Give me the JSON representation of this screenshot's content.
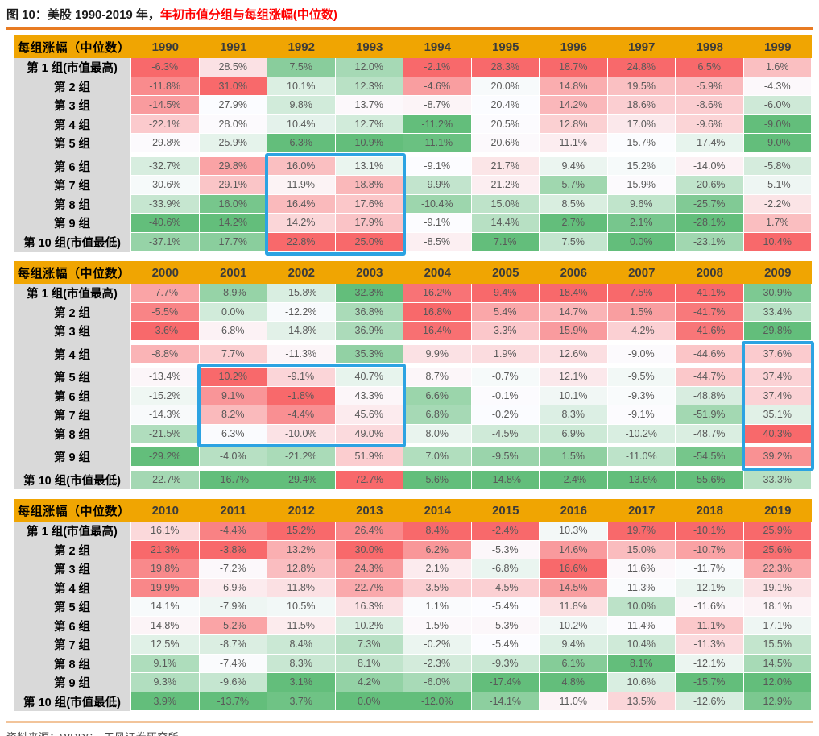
{
  "title": {
    "black": "图 10：美股 1990-2019 年，",
    "red": "年初市值分组与每组涨幅(中位数)"
  },
  "footer": {
    "text": "资料来源：WRDS，天风证券研究所"
  },
  "colors": {
    "header_gold": "#F0A502",
    "label_gray": "#D9D9D9",
    "scale_max_red": "#F8696B",
    "scale_mid_white": "#FCFCFF",
    "scale_min_green": "#63BE7B",
    "highlight_blue": "#2CA3E2",
    "top_rule_orange": "#E87B22",
    "bottom_rule_tan": "#F2C49A",
    "title_red": "#FF0000",
    "cell_text": "#595959"
  },
  "chart_data": {
    "type": "heatmap",
    "title": "图 10：美股 1990-2019 年，年初市值分组与每组涨幅(中位数)",
    "corner_label": "每组涨幅（中位数）",
    "colorscale_note": "per-column 3-color scale: column max = red #F8696B, column 50th percentile = white #FCFCFF, column min = green #63BE7B",
    "tables": [
      {
        "years": [
          "1990",
          "1991",
          "1992",
          "1993",
          "1994",
          "1995",
          "1996",
          "1997",
          "1998",
          "1999"
        ],
        "gaps_after": [
          4
        ],
        "rows": [
          {
            "label": "第 1 组(市值最高)",
            "values": [
              -6.3,
              28.5,
              7.5,
              12.0,
              -2.1,
              28.3,
              18.7,
              24.8,
              6.5,
              1.6
            ]
          },
          {
            "label": "第 2 组",
            "values": [
              -11.8,
              31.0,
              10.1,
              12.3,
              -4.6,
              20.0,
              14.8,
              19.5,
              -5.9,
              -4.3
            ]
          },
          {
            "label": "第 3 组",
            "values": [
              -14.5,
              27.9,
              9.8,
              13.7,
              -8.7,
              20.4,
              14.2,
              18.6,
              -8.6,
              -6.0
            ]
          },
          {
            "label": "第 4 组",
            "values": [
              -22.1,
              28.0,
              10.4,
              12.7,
              -11.2,
              20.5,
              12.8,
              17.0,
              -9.6,
              -9.0
            ]
          },
          {
            "label": "第 5 组",
            "values": [
              -29.8,
              25.9,
              6.3,
              10.9,
              -11.1,
              20.6,
              11.1,
              15.7,
              -17.4,
              -9.0
            ]
          },
          {
            "label": "第 6 组",
            "values": [
              -32.7,
              29.8,
              16.0,
              13.1,
              -9.1,
              21.7,
              9.4,
              15.2,
              -14.0,
              -5.8
            ]
          },
          {
            "label": "第 7 组",
            "values": [
              -30.6,
              29.1,
              11.9,
              18.8,
              -9.9,
              21.2,
              5.7,
              15.9,
              -20.6,
              -5.1
            ]
          },
          {
            "label": "第 8 组",
            "values": [
              -33.9,
              16.0,
              16.4,
              17.6,
              -10.4,
              15.0,
              8.5,
              9.6,
              -25.7,
              -2.2
            ]
          },
          {
            "label": "第 9 组",
            "values": [
              -40.6,
              14.2,
              14.2,
              17.9,
              -9.1,
              14.4,
              2.7,
              2.1,
              -28.1,
              1.7
            ]
          },
          {
            "label": "第 10 组(市值最低)",
            "values": [
              -37.1,
              17.7,
              22.8,
              25.0,
              -8.5,
              7.1,
              7.5,
              0.0,
              -23.1,
              10.4
            ]
          }
        ]
      },
      {
        "years": [
          "2000",
          "2001",
          "2002",
          "2003",
          "2004",
          "2005",
          "2006",
          "2007",
          "2008",
          "2009"
        ],
        "gaps_after": [
          2,
          3,
          7,
          8
        ],
        "rows": [
          {
            "label": "第 1 组(市值最高)",
            "values": [
              -7.7,
              -8.9,
              -15.8,
              32.3,
              16.2,
              9.4,
              18.4,
              7.5,
              -41.1,
              30.9
            ]
          },
          {
            "label": "第 2 组",
            "values": [
              -5.5,
              0.0,
              -12.2,
              36.8,
              16.8,
              5.4,
              14.7,
              1.5,
              -41.7,
              33.4
            ]
          },
          {
            "label": "第 3 组",
            "values": [
              -3.6,
              6.8,
              -14.8,
              36.9,
              16.4,
              3.3,
              15.9,
              -4.2,
              -41.6,
              29.8
            ]
          },
          {
            "label": "第 4 组",
            "values": [
              -8.8,
              7.7,
              -11.3,
              35.3,
              9.9,
              1.9,
              12.6,
              -9.0,
              -44.6,
              37.6
            ]
          },
          {
            "label": "第 5 组",
            "values": [
              -13.4,
              10.2,
              -9.1,
              40.7,
              8.7,
              -0.7,
              12.1,
              -9.5,
              -44.7,
              37.4
            ]
          },
          {
            "label": "第 6 组",
            "values": [
              -15.2,
              9.1,
              -1.8,
              43.3,
              6.6,
              -0.1,
              10.1,
              -9.3,
              -48.8,
              37.4
            ]
          },
          {
            "label": "第 7 组",
            "values": [
              -14.3,
              8.2,
              -4.4,
              45.6,
              6.8,
              -0.2,
              8.3,
              -9.1,
              -51.9,
              35.1
            ]
          },
          {
            "label": "第 8 组",
            "values": [
              -21.5,
              6.3,
              -10.0,
              49.0,
              8.0,
              -4.5,
              6.9,
              -10.2,
              -48.7,
              40.3
            ]
          },
          {
            "label": "第 9 组",
            "values": [
              -29.2,
              -4.0,
              -21.2,
              51.9,
              7.0,
              -9.5,
              1.5,
              -11.0,
              -54.5,
              39.2
            ]
          },
          {
            "label": "第 10 组(市值最低)",
            "values": [
              -22.7,
              -16.7,
              -29.4,
              72.7,
              5.6,
              -14.8,
              -2.4,
              -13.6,
              -55.6,
              33.3
            ]
          }
        ]
      },
      {
        "years": [
          "2010",
          "2011",
          "2012",
          "2013",
          "2014",
          "2015",
          "2016",
          "2017",
          "2018",
          "2019"
        ],
        "gaps_after": [],
        "rows": [
          {
            "label": "第 1 组(市值最高)",
            "values": [
              16.1,
              -4.4,
              15.2,
              26.4,
              8.4,
              -2.4,
              10.3,
              19.7,
              -10.1,
              25.9
            ]
          },
          {
            "label": "第 2 组",
            "values": [
              21.3,
              -3.8,
              13.2,
              30.0,
              6.2,
              -5.3,
              14.6,
              15.0,
              -10.7,
              25.6
            ]
          },
          {
            "label": "第 3 组",
            "values": [
              19.8,
              -7.2,
              12.8,
              24.3,
              2.1,
              -6.8,
              16.6,
              11.6,
              -11.7,
              22.3
            ]
          },
          {
            "label": "第 4 组",
            "values": [
              19.9,
              -6.9,
              11.8,
              22.7,
              3.5,
              -4.5,
              14.5,
              11.3,
              -12.1,
              19.1
            ]
          },
          {
            "label": "第 5 组",
            "values": [
              14.1,
              -7.9,
              10.5,
              16.3,
              1.1,
              -5.4,
              11.8,
              10.0,
              -11.6,
              18.1
            ]
          },
          {
            "label": "第 6 组",
            "values": [
              14.8,
              -5.2,
              11.5,
              10.2,
              1.5,
              -5.3,
              10.2,
              11.4,
              -11.1,
              17.1
            ]
          },
          {
            "label": "第 7 组",
            "values": [
              12.5,
              -8.7,
              8.4,
              7.3,
              -0.2,
              -5.4,
              9.4,
              10.4,
              -11.3,
              15.5
            ]
          },
          {
            "label": "第 8 组",
            "values": [
              9.1,
              -7.4,
              8.3,
              8.1,
              -2.3,
              -9.3,
              6.1,
              8.1,
              -12.1,
              14.5
            ]
          },
          {
            "label": "第 9 组",
            "values": [
              9.3,
              -9.6,
              3.1,
              4.2,
              -6.0,
              -17.4,
              4.8,
              10.6,
              -15.7,
              12.0
            ]
          },
          {
            "label": "第 10 组(市值最低)",
            "values": [
              3.9,
              -13.7,
              3.7,
              0.0,
              -12.0,
              -14.1,
              11.0,
              13.5,
              -12.6,
              12.9
            ]
          }
        ]
      }
    ],
    "highlights": [
      {
        "table": 0,
        "row_start": 5,
        "row_end": 9,
        "col_start": 2,
        "col_end": 3
      },
      {
        "table": 1,
        "row_start": 4,
        "row_end": 7,
        "col_start": 1,
        "col_end": 3
      },
      {
        "table": 1,
        "row_start": 3,
        "row_end": 8,
        "col_start": 9,
        "col_end": 9
      }
    ]
  }
}
